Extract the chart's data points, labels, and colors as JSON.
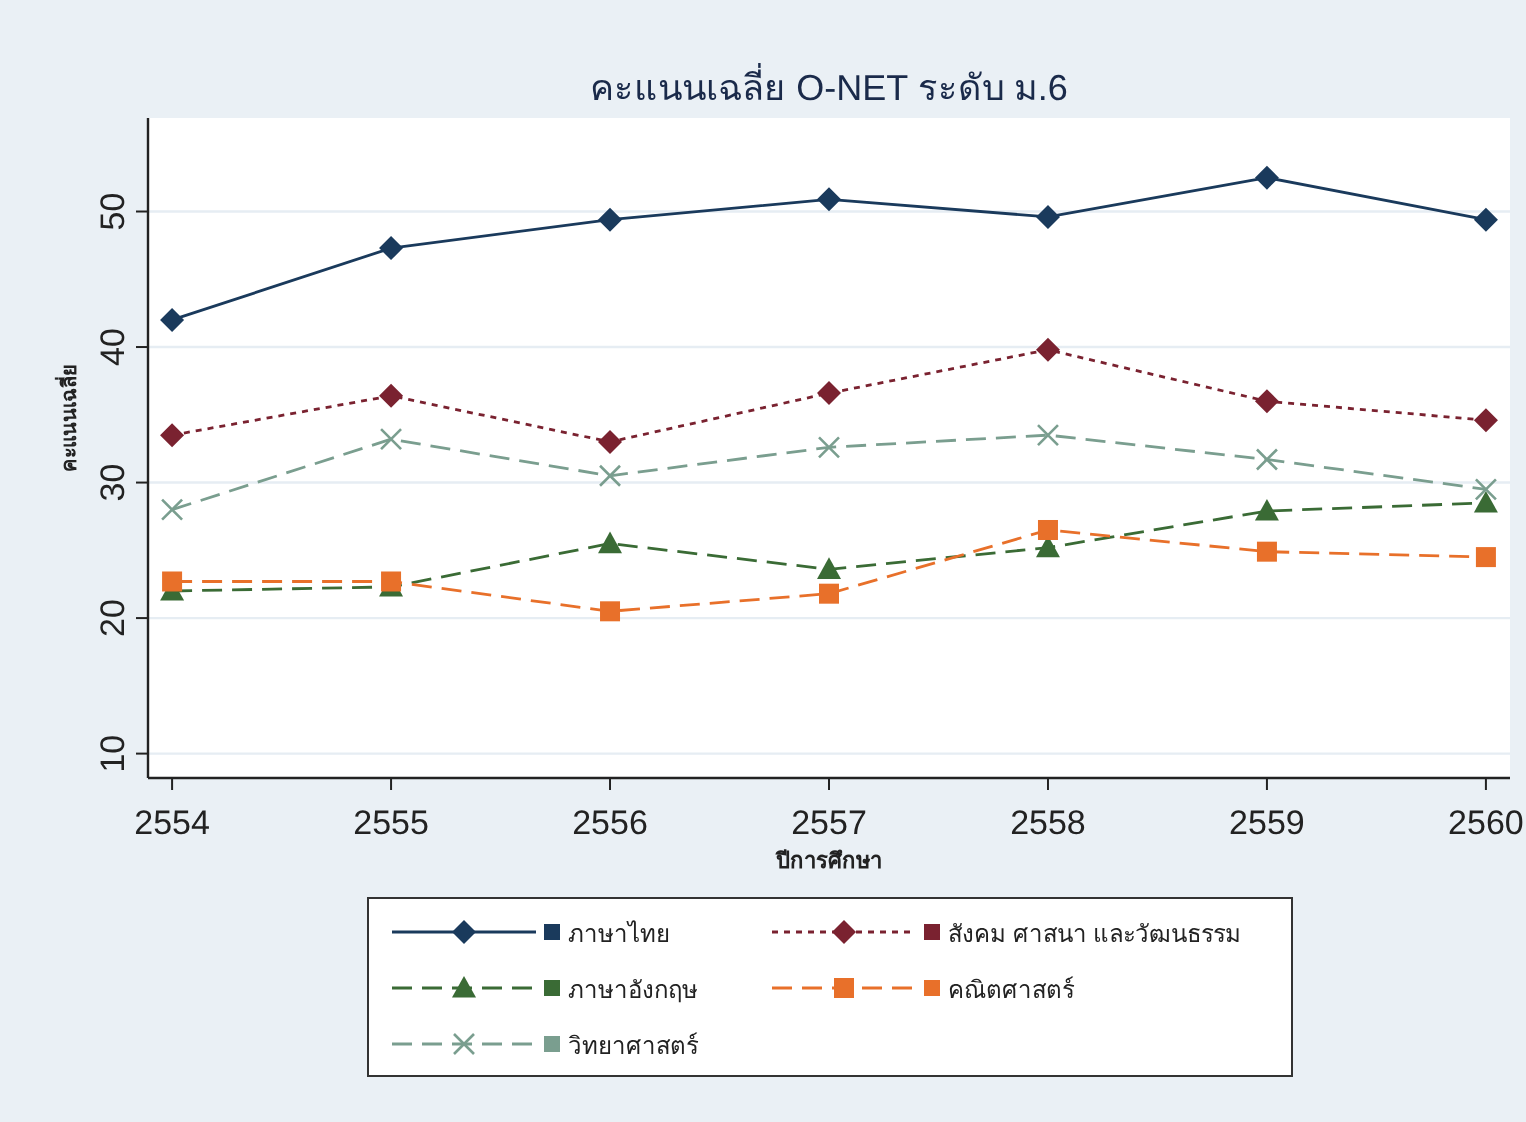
{
  "chart_data": {
    "type": "line",
    "title": "คะแนนเฉลี่ย O-NET ระดับ ม.6",
    "xlabel": "ปีการศึกษา",
    "ylabel": "คะแนนเฉลี่ย",
    "x": [
      2554,
      2555,
      2556,
      2557,
      2558,
      2559,
      2560
    ],
    "xlim": [
      2553.89,
      2560.11
    ],
    "xticks": [
      2554,
      2555,
      2556,
      2557,
      2558,
      2559,
      2560
    ],
    "ylim": [
      8.2,
      56.9
    ],
    "yticks": [
      10,
      20,
      30,
      40,
      50
    ],
    "grid": "y",
    "legend": "bottom",
    "series": [
      {
        "name": "ภาษาไทย",
        "color": "#1a3a5c",
        "marker": "diamond",
        "line_style": "solid",
        "values": [
          42.0,
          47.3,
          49.4,
          50.9,
          49.6,
          52.5,
          49.4
        ]
      },
      {
        "name": "สังคม ศาสนา และวัฒนธรรม",
        "color": "#7a2230",
        "marker": "diamond",
        "line_style": "dotted",
        "values": [
          33.5,
          36.4,
          33.0,
          36.6,
          39.8,
          36.0,
          34.6
        ]
      },
      {
        "name": "ภาษาอังกฤษ",
        "color": "#3a6b35",
        "marker": "triangle",
        "line_style": "dashed",
        "values": [
          22.0,
          22.3,
          25.5,
          23.6,
          25.2,
          27.9,
          28.5
        ]
      },
      {
        "name": "คณิตศาสตร์",
        "color": "#e8702a",
        "marker": "square",
        "line_style": "dashed",
        "values": [
          22.7,
          22.7,
          20.5,
          21.8,
          26.5,
          24.9,
          24.5
        ]
      },
      {
        "name": "วิทยาศาสตร์",
        "color": "#7a9e8f",
        "marker": "cross",
        "line_style": "dashed",
        "values": [
          28.0,
          33.2,
          30.5,
          32.6,
          33.5,
          31.7,
          29.5
        ]
      }
    ]
  }
}
